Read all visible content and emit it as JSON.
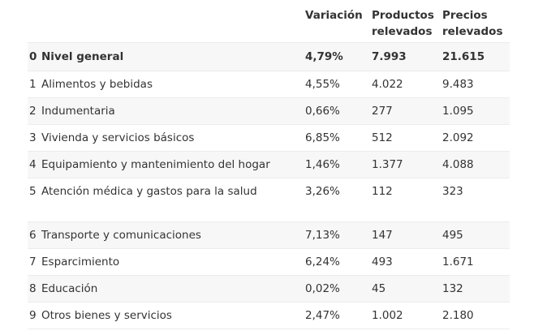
{
  "headers": {
    "variation": [
      "Variación"
    ],
    "products": [
      "Productos",
      "relevados"
    ],
    "prices": [
      "Precios",
      "relevados"
    ]
  },
  "rows": [
    {
      "num": "0",
      "name": "Nivel general",
      "variation": "4,79%",
      "products": "7.993",
      "prices": "21.615"
    },
    {
      "num": "1",
      "name": "Alimentos y bebidas",
      "variation": "4,55%",
      "products": "4.022",
      "prices": "9.483"
    },
    {
      "num": "2",
      "name": "Indumentaria",
      "variation": "0,66%",
      "products": "277",
      "prices": "1.095"
    },
    {
      "num": "3",
      "name": "Vivienda y servicios básicos",
      "variation": "6,85%",
      "products": "512",
      "prices": "2.092"
    },
    {
      "num": "4",
      "name": "Equipamiento y mantenimiento del hogar",
      "variation": "1,46%",
      "products": "1.377",
      "prices": "4.088"
    },
    {
      "num": "5",
      "name": "Atención médica y gastos para la salud",
      "variation": "3,26%",
      "products": "112",
      "prices": "323"
    },
    {
      "num": "6",
      "name": "Transporte y comunicaciones",
      "variation": "7,13%",
      "products": "147",
      "prices": "495"
    },
    {
      "num": "7",
      "name": "Esparcimiento",
      "variation": "6,24%",
      "products": "493",
      "prices": "1.671"
    },
    {
      "num": "8",
      "name": "Educación",
      "variation": "0,02%",
      "products": "45",
      "prices": "132"
    },
    {
      "num": "9",
      "name": "Otros bienes y servicios",
      "variation": "2,47%",
      "products": "1.002",
      "prices": "2.180"
    }
  ]
}
